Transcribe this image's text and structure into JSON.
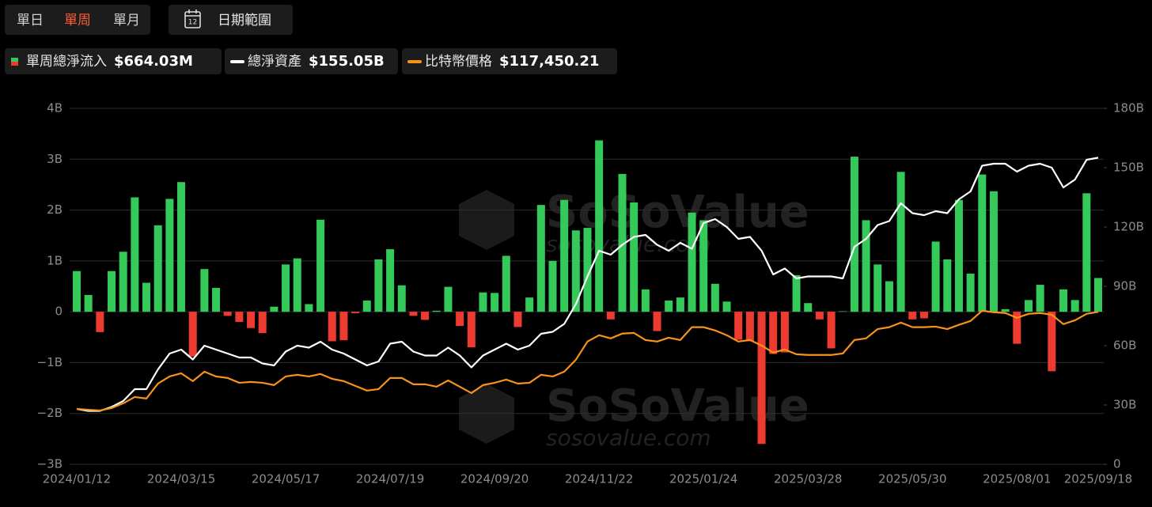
{
  "controls": {
    "tabs": [
      "單日",
      "單周",
      "單月"
    ],
    "active_tab": 1,
    "active_color": "#ff5a36",
    "date_button": "日期範圍",
    "date_icon_text": "12"
  },
  "watermark": {
    "brand": "SoSoValue",
    "site": "sosovalue.com"
  },
  "chart_data": {
    "type": "bar_line",
    "categories": [
      "2024/01/12",
      null,
      null,
      null,
      null,
      null,
      null,
      null,
      null,
      "2024/03/15",
      null,
      null,
      null,
      null,
      null,
      null,
      null,
      null,
      "2024/05/17",
      null,
      null,
      null,
      null,
      null,
      null,
      null,
      null,
      "2024/07/19",
      null,
      null,
      null,
      null,
      null,
      null,
      null,
      null,
      "2024/09/20",
      null,
      null,
      null,
      null,
      null,
      null,
      null,
      null,
      "2024/11/22",
      null,
      null,
      null,
      null,
      null,
      null,
      null,
      null,
      "2025/01/24",
      null,
      null,
      null,
      null,
      null,
      null,
      null,
      null,
      "2025/03/28",
      null,
      null,
      null,
      null,
      null,
      null,
      null,
      null,
      "2025/05/30",
      null,
      null,
      null,
      null,
      null,
      null,
      null,
      null,
      "2025/08/01",
      null,
      null,
      null,
      null,
      null,
      null,
      "2025/09/18"
    ],
    "series": [
      {
        "name": "單周總淨流入",
        "type": "bar",
        "color": "#35c95a",
        "negative_color": "#ee3b32",
        "latest_label": "$664.03M",
        "values": [
          0.8,
          0.33,
          -0.4,
          0.8,
          1.18,
          2.25,
          0.57,
          1.7,
          2.22,
          2.55,
          -0.88,
          0.84,
          0.47,
          -0.08,
          -0.2,
          -0.32,
          -0.42,
          0.1,
          0.93,
          1.05,
          0.15,
          1.81,
          -0.58,
          -0.56,
          -0.03,
          0.22,
          1.03,
          1.23,
          0.52,
          -0.08,
          -0.16,
          0.02,
          0.49,
          -0.28,
          -0.7,
          0.38,
          0.37,
          1.1,
          -0.3,
          0.28,
          2.1,
          1.0,
          2.2,
          1.6,
          1.65,
          3.37,
          -0.15,
          2.71,
          2.15,
          0.44,
          -0.38,
          0.22,
          0.28,
          1.95,
          1.8,
          0.55,
          0.2,
          -0.55,
          -0.58,
          -2.6,
          -0.83,
          -0.8,
          0.72,
          0.17,
          -0.15,
          -0.72,
          0.01,
          3.05,
          1.8,
          0.93,
          0.6,
          2.75,
          -0.15,
          -0.13,
          1.38,
          1.03,
          2.2,
          0.75,
          2.7,
          2.37,
          0.05,
          -0.63,
          0.23,
          0.53,
          -1.17,
          0.44,
          0.23,
          2.33,
          0.66403
        ]
      },
      {
        "name": "總淨資產",
        "type": "line",
        "axis": "y2",
        "color": "#ffffff",
        "latest_label": "$155.05B",
        "values": [
          28,
          27,
          27,
          29,
          32,
          38,
          38,
          48,
          56,
          58,
          53,
          60,
          58,
          56,
          54,
          54,
          51,
          50,
          57,
          60,
          59,
          62,
          58,
          56,
          53,
          50,
          52,
          61,
          62,
          57,
          55,
          55,
          59,
          55,
          49,
          55,
          58,
          61,
          58,
          60,
          66,
          67,
          71,
          81,
          95,
          108,
          106,
          111,
          115,
          116,
          111,
          108,
          112,
          109,
          122,
          124,
          120,
          114,
          115,
          108,
          96,
          99,
          94,
          95,
          95,
          95,
          94,
          110,
          114,
          121,
          123,
          132,
          127,
          126,
          128,
          127,
          134,
          138,
          151,
          152,
          152,
          148,
          151,
          152,
          150,
          140,
          144,
          154,
          155.05
        ]
      },
      {
        "name": "比特幣價格",
        "type": "line",
        "axis": "y3",
        "color": "#f7931a",
        "latest_label": "$117,450.21",
        "values": [
          46600,
          46000,
          45500,
          47200,
          50700,
          55300,
          54200,
          65100,
          70300,
          72600,
          66900,
          73800,
          70300,
          69200,
          65700,
          66300,
          65700,
          64000,
          70300,
          71500,
          70300,
          72100,
          68600,
          66900,
          63400,
          60000,
          61100,
          69200,
          69200,
          64600,
          64600,
          62800,
          67400,
          62800,
          58200,
          64000,
          65700,
          68000,
          65100,
          65700,
          71500,
          70300,
          73800,
          82500,
          95800,
          100400,
          98100,
          101600,
          102100,
          96900,
          95800,
          98600,
          96900,
          106300,
          106300,
          103900,
          100400,
          95800,
          96900,
          92900,
          87700,
          90000,
          86500,
          86000,
          86000,
          86000,
          87100,
          96900,
          98100,
          104900,
          106300,
          109600,
          106300,
          106300,
          106700,
          104900,
          108000,
          110800,
          118300,
          117200,
          116600,
          113100,
          116000,
          116600,
          115400,
          108500,
          111300,
          116000,
          117450.21
        ]
      }
    ],
    "ylim": [
      -3,
      4
    ],
    "yticks": [
      {
        "value": -3,
        "label": "−3B"
      },
      {
        "value": -2,
        "label": "−2B"
      },
      {
        "value": -1,
        "label": "−1B"
      },
      0,
      {
        "value": 1,
        "label": "1B"
      },
      {
        "value": 2,
        "label": "2B"
      },
      {
        "value": 3,
        "label": "3B"
      },
      {
        "value": 4,
        "label": "4B"
      }
    ],
    "y2lim": [
      0,
      180
    ],
    "y2ticks": [
      0,
      {
        "value": 30,
        "label": "30B"
      },
      {
        "value": 60,
        "label": "60B"
      },
      {
        "value": 90,
        "label": "90B"
      },
      {
        "value": 120,
        "label": "120B"
      },
      {
        "value": 150,
        "label": "150B"
      },
      {
        "value": 180,
        "label": "180B"
      }
    ],
    "y3lim": [
      6200,
      266000
    ],
    "grid": true
  }
}
